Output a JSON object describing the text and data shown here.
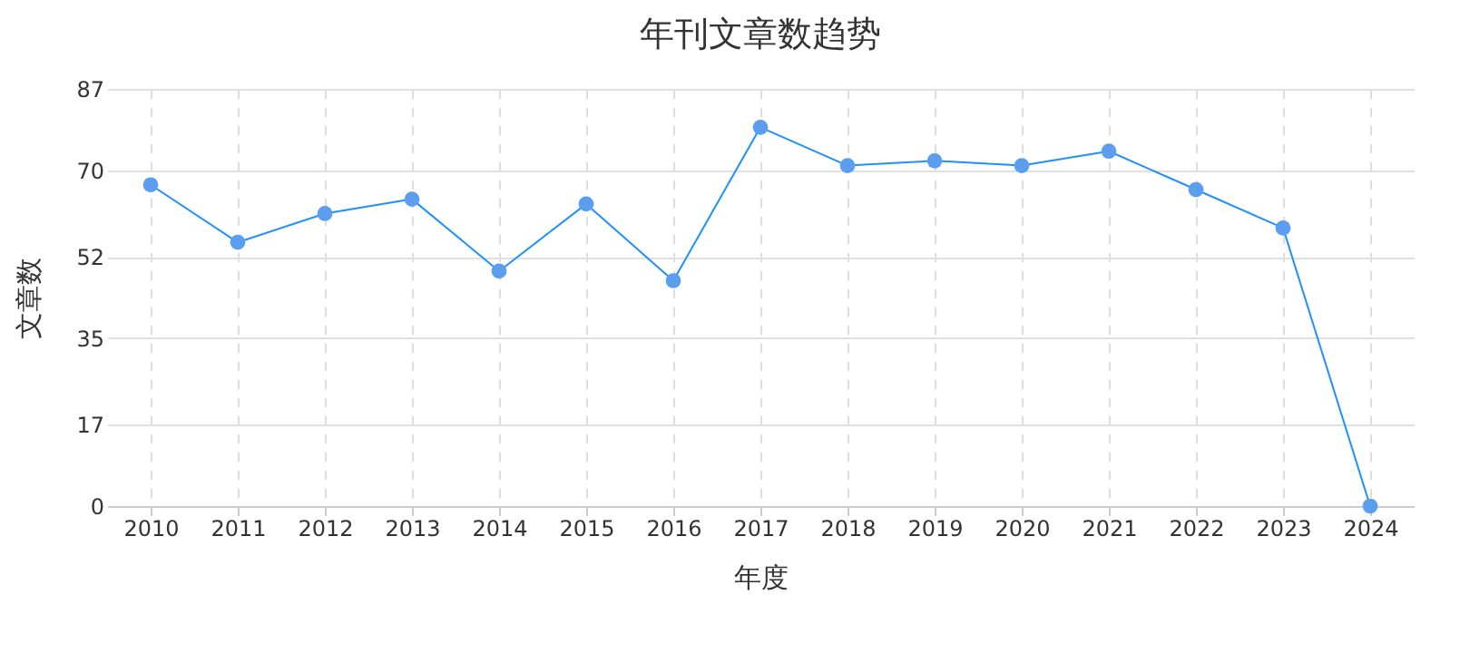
{
  "chart_data": {
    "type": "line",
    "title": "年刊文章数趋势",
    "xlabel": "年度",
    "ylabel": "文章数",
    "categories": [
      "2010",
      "2011",
      "2012",
      "2013",
      "2014",
      "2015",
      "2016",
      "2017",
      "2018",
      "2019",
      "2020",
      "2021",
      "2022",
      "2023",
      "2024"
    ],
    "series": [
      {
        "color": "#1e90ff",
        "values": [
          67,
          55,
          61,
          64,
          49,
          63,
          47,
          79,
          71,
          72,
          71,
          74,
          66,
          58,
          0
        ]
      }
    ],
    "ylim": [
      0,
      87
    ],
    "yticks": [
      0,
      17,
      35,
      52,
      70,
      87
    ],
    "grid": true,
    "marker": "circle",
    "line_style": "solid"
  }
}
